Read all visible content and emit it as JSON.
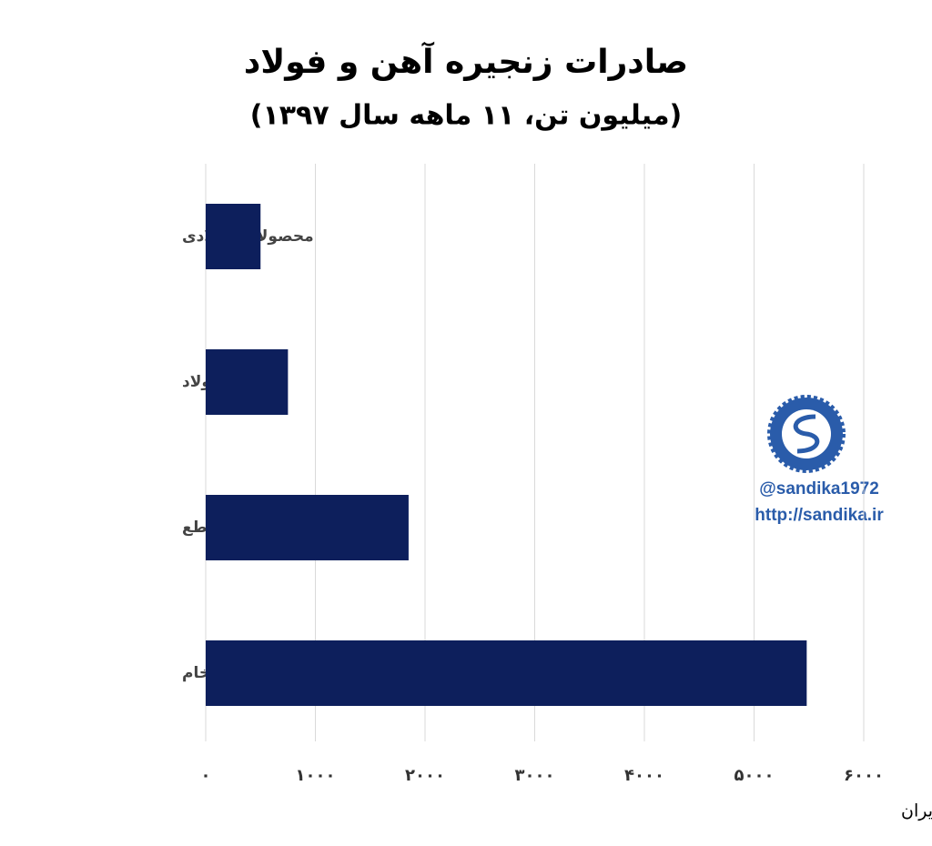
{
  "chart_data": {
    "type": "barh",
    "title": "صادرات زنجیره آهن و فولاد",
    "subtitle": "(میلیون تن، ۱۱ ماهه سال ۱۳۹۷)",
    "categories": [
      "محصولات فولادی",
      "ورق فولاد",
      "میل گردها و مقاطع",
      "آهن خام"
    ],
    "values": [
      500,
      750,
      1850,
      5480
    ],
    "color": "#0d1f5c",
    "xlim": [
      0,
      6000
    ],
    "xticks": [
      {
        "value": 0,
        "label": "۰"
      },
      {
        "value": 1000,
        "label": "۱۰۰۰"
      },
      {
        "value": 2000,
        "label": "۲۰۰۰"
      },
      {
        "value": 3000,
        "label": "۳۰۰۰"
      },
      {
        "value": 4000,
        "label": "۴۰۰۰"
      },
      {
        "value": 5000,
        "label": "۵۰۰۰"
      },
      {
        "value": 6000,
        "label": "۶۰۰۰"
      }
    ],
    "grid": true,
    "annotations": [
      "@sandika1972",
      "http://sandika.ir"
    ],
    "source": "منبع: گمرک ایران"
  }
}
